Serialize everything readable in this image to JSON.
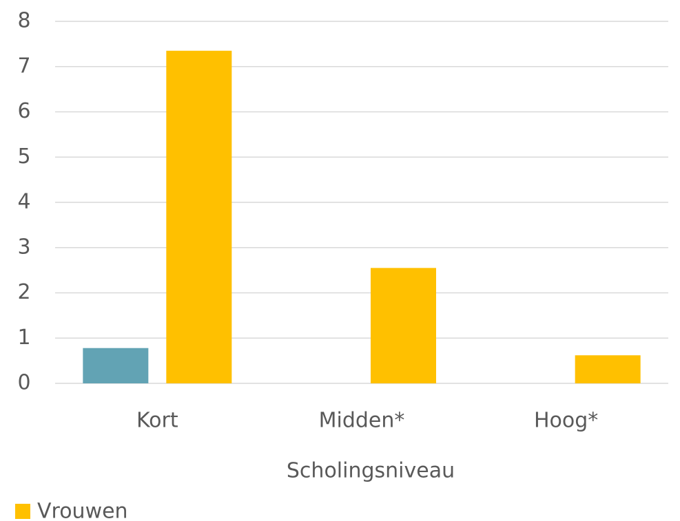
{
  "chart_data": {
    "type": "bar",
    "categories": [
      "Kort",
      "Midden*",
      "Hoog*"
    ],
    "x_label": "Scholingsniveau",
    "series": [
      {
        "color": "#62a3b4",
        "values": [
          0.78,
          null,
          null
        ]
      },
      {
        "name": "Vrouwen",
        "color": "#ffc000",
        "values": [
          7.35,
          2.55,
          0.62
        ]
      }
    ],
    "ylim": [
      0,
      8
    ],
    "yticks": [
      0,
      1,
      2,
      3,
      4,
      5,
      6,
      7,
      8
    ],
    "grid": true,
    "legend": "bottom-left"
  }
}
